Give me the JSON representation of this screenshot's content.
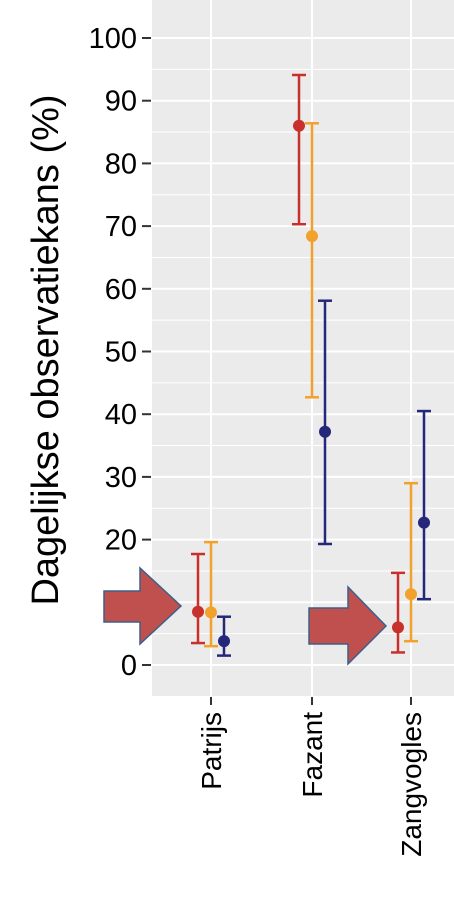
{
  "chart_data": {
    "type": "scatter",
    "ylabel": "Dagelijkse observatiekans (%)",
    "xlabel": "",
    "ylim": [
      -5,
      105
    ],
    "yticks": [
      "0",
      "10",
      "20",
      "30",
      "40",
      "50",
      "60",
      "70",
      "80",
      "90",
      "100"
    ],
    "categories": [
      "Patrijs",
      "Fazant",
      "Zangvogles"
    ],
    "grid": true,
    "legend": "none",
    "series": [
      {
        "color": "#c8302b",
        "values": [
          8.5,
          86,
          6
        ],
        "lower": [
          3.5,
          70.3,
          2
        ],
        "upper": [
          17.7,
          94.1,
          14.7
        ]
      },
      {
        "color": "#f2a22c",
        "values": [
          8.4,
          68.4,
          11.3
        ],
        "lower": [
          3,
          42.7,
          3.8
        ],
        "upper": [
          19.6,
          86.4,
          29
        ]
      },
      {
        "color": "#25287a",
        "values": [
          3.8,
          37.2,
          22.7
        ],
        "lower": [
          1.5,
          19.3,
          10.5
        ],
        "upper": [
          7.7,
          58.1,
          40.5
        ]
      }
    ]
  },
  "colors": {
    "panel_background": "#ebebeb",
    "gridline": "#ffffff",
    "arrow_fill": "#c0504d",
    "arrow_stroke": "#3e5f8a"
  },
  "annotations": [
    "right-arrow",
    "right-arrow"
  ]
}
